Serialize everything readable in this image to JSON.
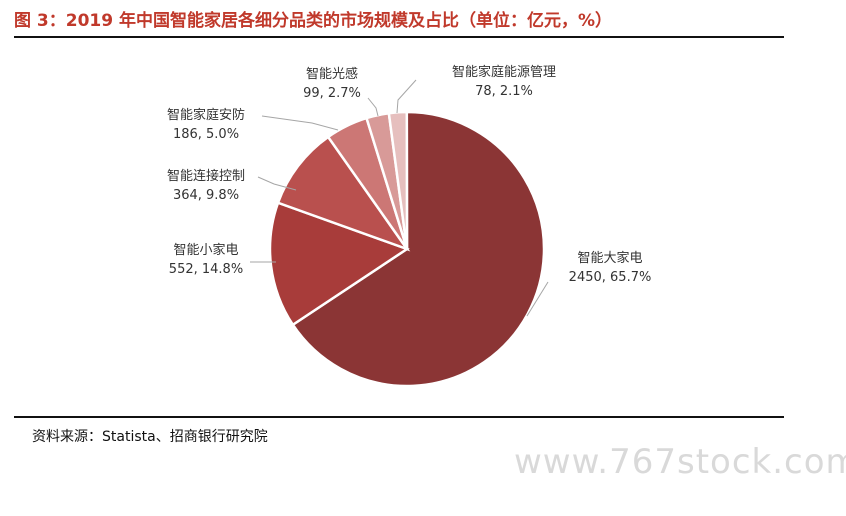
{
  "header": {
    "title": "图 3：2019 年中国智能家居各细分品类的市场规模及占比（单位：亿元，%）"
  },
  "footer": {
    "source": "资料来源：Statista、招商银行研究院",
    "watermark": "www.767stock.com"
  },
  "chart_data": {
    "type": "pie",
    "title": "",
    "legend": "none",
    "slices": [
      {
        "name": "智能大家电",
        "value": 2450,
        "label": "2450, 65.7%",
        "color": "#8b3535"
      },
      {
        "name": "智能小家电",
        "value": 552,
        "label": "552, 14.8%",
        "color": "#a83c3a"
      },
      {
        "name": "智能连接控制",
        "value": 364,
        "label": "364, 9.8%",
        "color": "#b9504e"
      },
      {
        "name": "智能家庭安防",
        "value": 186,
        "label": "186, 5.0%",
        "color": "#cc7775"
      },
      {
        "name": "智能光感",
        "value": 99,
        "label": "99, 2.7%",
        "color": "#d89a98"
      },
      {
        "name": "智能家庭能源管理",
        "value": 78,
        "label": "78, 2.1%",
        "color": "#e6bfbe"
      }
    ]
  }
}
